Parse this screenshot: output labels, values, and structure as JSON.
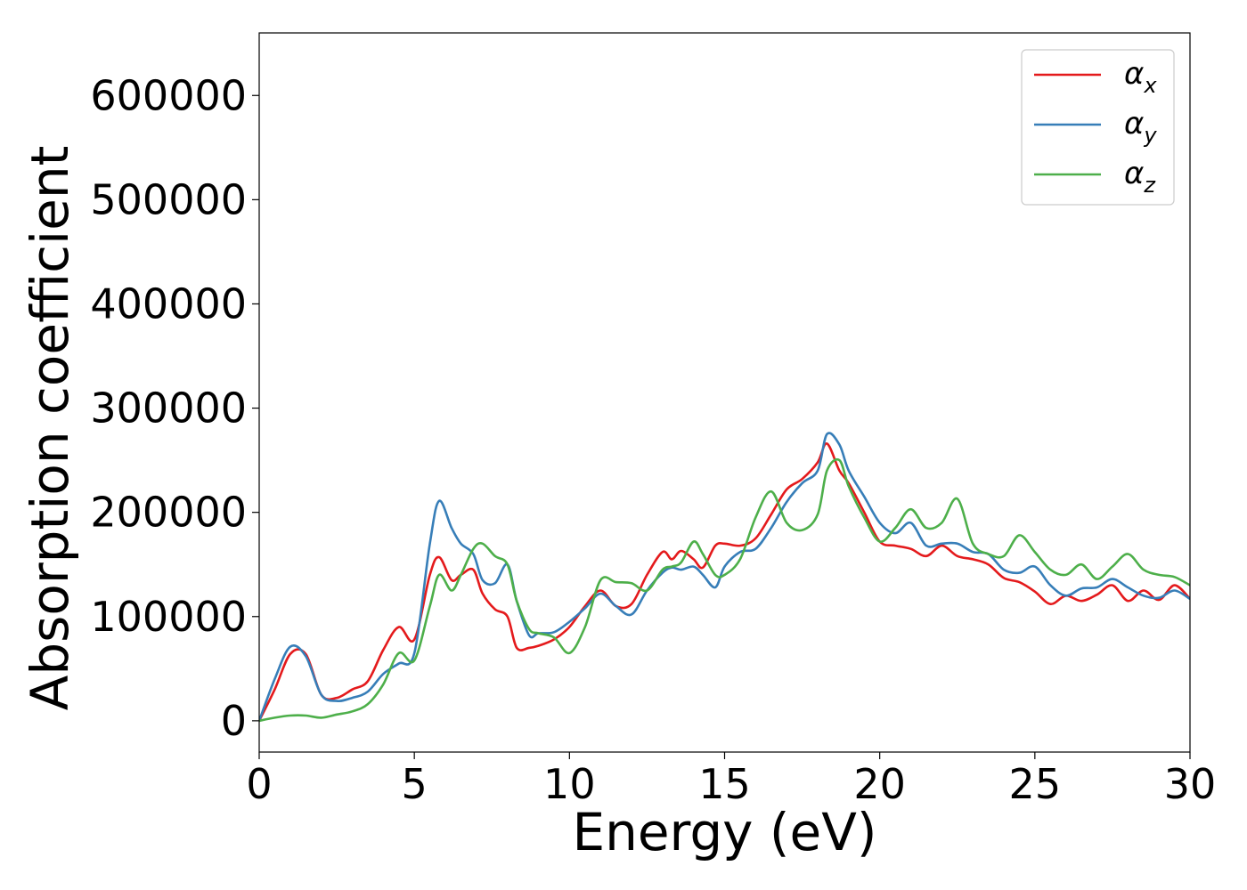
{
  "chart_data": {
    "type": "line",
    "title": "",
    "xlabel": "Energy (eV)",
    "ylabel": "Absorption coefficient",
    "xlim": [
      0,
      30
    ],
    "ylim": [
      -30000,
      660000
    ],
    "xticks": [
      0,
      5,
      10,
      15,
      20,
      25,
      30
    ],
    "xtick_labels": [
      "0",
      "5",
      "10",
      "15",
      "20",
      "25",
      "30"
    ],
    "yticks": [
      0,
      100000,
      200000,
      300000,
      400000,
      500000,
      600000
    ],
    "ytick_labels": [
      "0",
      "100000",
      "200000",
      "300000",
      "400000",
      "500000",
      "600000"
    ],
    "grid": false,
    "legend": "top-right",
    "series": [
      {
        "name": "αx",
        "symbol": "α",
        "subscript": "x",
        "color": "#e41a1c",
        "x": [
          0,
          0.5,
          1.0,
          1.5,
          2.0,
          2.5,
          3.0,
          3.5,
          4.0,
          4.5,
          5.0,
          5.5,
          5.8,
          6.2,
          6.5,
          6.9,
          7.2,
          7.6,
          8.0,
          8.3,
          8.7,
          9.0,
          9.5,
          10.0,
          10.5,
          11.0,
          11.5,
          12.0,
          12.5,
          13.0,
          13.3,
          13.6,
          14.0,
          14.3,
          14.7,
          15.0,
          15.5,
          16.0,
          16.5,
          17.0,
          17.5,
          18.0,
          18.3,
          18.7,
          19.0,
          19.5,
          20.0,
          20.5,
          21.0,
          21.5,
          22.0,
          22.5,
          23.0,
          23.5,
          24.0,
          24.5,
          25.0,
          25.5,
          26.0,
          26.5,
          27.0,
          27.5,
          28.0,
          28.5,
          29.0,
          29.5,
          30.0
        ],
        "y": [
          0,
          30000,
          64000,
          64000,
          25000,
          22000,
          30000,
          38000,
          68000,
          90000,
          78000,
          140000,
          157000,
          135000,
          140000,
          145000,
          122000,
          107000,
          100000,
          70000,
          70000,
          72000,
          78000,
          90000,
          110000,
          125000,
          110000,
          112000,
          140000,
          162000,
          155000,
          163000,
          155000,
          147000,
          168000,
          170000,
          168000,
          175000,
          198000,
          222000,
          232000,
          248000,
          266000,
          240000,
          228000,
          200000,
          172000,
          168000,
          165000,
          158000,
          168000,
          158000,
          155000,
          150000,
          137000,
          133000,
          124000,
          112000,
          120000,
          115000,
          121000,
          130000,
          115000,
          125000,
          116000,
          130000,
          117000
        ]
      },
      {
        "name": "αy",
        "symbol": "α",
        "subscript": "y",
        "color": "#377eb8",
        "x": [
          0,
          0.5,
          1.0,
          1.5,
          2.0,
          2.5,
          3.0,
          3.5,
          4.0,
          4.5,
          5.0,
          5.5,
          5.8,
          6.2,
          6.5,
          6.9,
          7.2,
          7.6,
          8.0,
          8.3,
          8.7,
          9.0,
          9.5,
          10.0,
          10.5,
          11.0,
          11.5,
          12.0,
          12.5,
          13.0,
          13.3,
          13.6,
          14.0,
          14.3,
          14.7,
          15.0,
          15.5,
          16.0,
          16.5,
          17.0,
          17.5,
          18.0,
          18.3,
          18.7,
          19.0,
          19.5,
          20.0,
          20.5,
          21.0,
          21.5,
          22.0,
          22.5,
          23.0,
          23.5,
          24.0,
          24.5,
          25.0,
          25.5,
          26.0,
          26.5,
          27.0,
          27.5,
          28.0,
          28.5,
          29.0,
          29.5,
          30.0
        ],
        "y": [
          0,
          40000,
          71000,
          62000,
          25000,
          19000,
          22000,
          28000,
          45000,
          55000,
          65000,
          170000,
          211000,
          185000,
          170000,
          160000,
          135000,
          132000,
          150000,
          115000,
          82000,
          84000,
          85000,
          95000,
          108000,
          122000,
          110000,
          102000,
          125000,
          142000,
          147000,
          145000,
          148000,
          140000,
          128000,
          148000,
          162000,
          165000,
          185000,
          210000,
          228000,
          240000,
          275000,
          265000,
          240000,
          215000,
          190000,
          180000,
          190000,
          168000,
          170000,
          170000,
          162000,
          160000,
          145000,
          142000,
          148000,
          130000,
          120000,
          127000,
          128000,
          136000,
          128000,
          120000,
          118000,
          125000,
          117000
        ]
      },
      {
        "name": "αz",
        "symbol": "α",
        "subscript": "z",
        "color": "#4daf4a",
        "x": [
          0,
          0.5,
          1.0,
          1.5,
          2.0,
          2.5,
          3.0,
          3.5,
          4.0,
          4.5,
          5.0,
          5.5,
          5.8,
          6.2,
          6.5,
          6.9,
          7.2,
          7.6,
          8.0,
          8.3,
          8.7,
          9.0,
          9.5,
          10.0,
          10.5,
          11.0,
          11.5,
          12.0,
          12.5,
          13.0,
          13.3,
          13.6,
          14.0,
          14.3,
          14.7,
          15.0,
          15.5,
          16.0,
          16.5,
          17.0,
          17.5,
          18.0,
          18.3,
          18.7,
          19.0,
          19.5,
          20.0,
          20.5,
          21.0,
          21.5,
          22.0,
          22.5,
          23.0,
          23.5,
          24.0,
          24.5,
          25.0,
          25.5,
          26.0,
          26.5,
          27.0,
          27.5,
          28.0,
          28.5,
          29.0,
          29.5,
          30.0
        ],
        "y": [
          0,
          3000,
          5000,
          5000,
          3000,
          6000,
          9000,
          16000,
          35000,
          65000,
          58000,
          110000,
          140000,
          125000,
          140000,
          165000,
          170000,
          158000,
          150000,
          115000,
          88000,
          84000,
          80000,
          65000,
          90000,
          135000,
          133000,
          132000,
          125000,
          145000,
          148000,
          152000,
          172000,
          160000,
          140000,
          140000,
          155000,
          195000,
          220000,
          190000,
          183000,
          198000,
          240000,
          250000,
          225000,
          195000,
          172000,
          185000,
          203000,
          185000,
          190000,
          213000,
          170000,
          160000,
          158000,
          178000,
          162000,
          145000,
          140000,
          150000,
          136000,
          148000,
          160000,
          145000,
          140000,
          138000,
          130000
        ]
      }
    ]
  }
}
